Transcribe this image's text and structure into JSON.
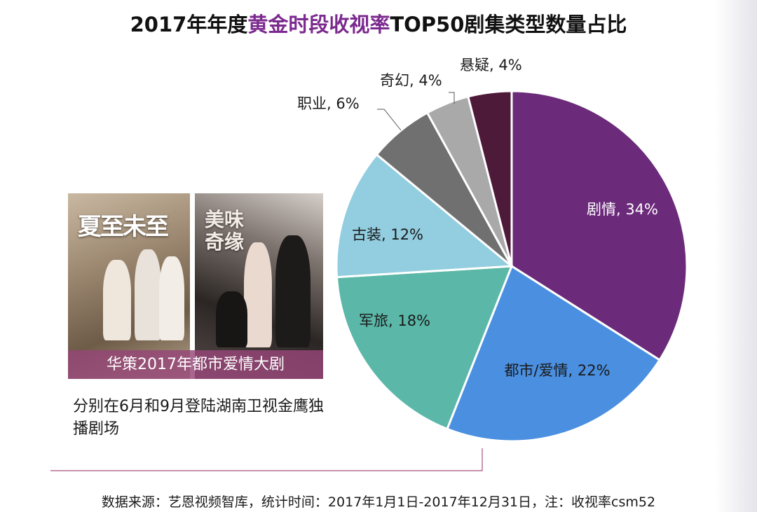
{
  "title": {
    "prefix": "2017年年度",
    "highlight": "黄金时段收视率",
    "suffix": "TOP50剧集类型数量占比",
    "highlight_color": "#7b2a8e"
  },
  "posters": [
    {
      "title": "夏至未至"
    },
    {
      "title": "美味奇缘"
    }
  ],
  "poster_caption": "华策2017年都市爱情大剧",
  "description": "分别在6月和9月登陆湖南卫视金鹰独播剧场",
  "source": "数据来源：艺恩视频智库，统计时间：2017年1月1日-2017年12月31日，注：收视率csm52",
  "chart_data": {
    "type": "pie",
    "unit": "%",
    "slices": [
      {
        "label": "剧情",
        "value": 34,
        "text": "剧情, 34%",
        "color": "#6b2a7a",
        "label_color": "#ffffff"
      },
      {
        "label": "都市/爱情",
        "value": 22,
        "text": "都市/爱情, 22%",
        "color": "#4a8fe0",
        "label_color": "#1a1a1a"
      },
      {
        "label": "军旅",
        "value": 18,
        "text": "军旅, 18%",
        "color": "#5bb8a8",
        "label_color": "#1a1a1a"
      },
      {
        "label": "古装",
        "value": 12,
        "text": "古装, 12%",
        "color": "#92cde0",
        "label_color": "#1a1a1a"
      },
      {
        "label": "职业",
        "value": 6,
        "text": "职业, 6%",
        "color": "#707070",
        "label_color": "#1a1a1a"
      },
      {
        "label": "奇幻",
        "value": 4,
        "text": "奇幻, 4%",
        "color": "#a9a9a9",
        "label_color": "#1a1a1a"
      },
      {
        "label": "悬疑",
        "value": 4,
        "text": "悬疑, 4%",
        "color": "#4e1a3a",
        "label_color": "#1a1a1a"
      }
    ]
  }
}
